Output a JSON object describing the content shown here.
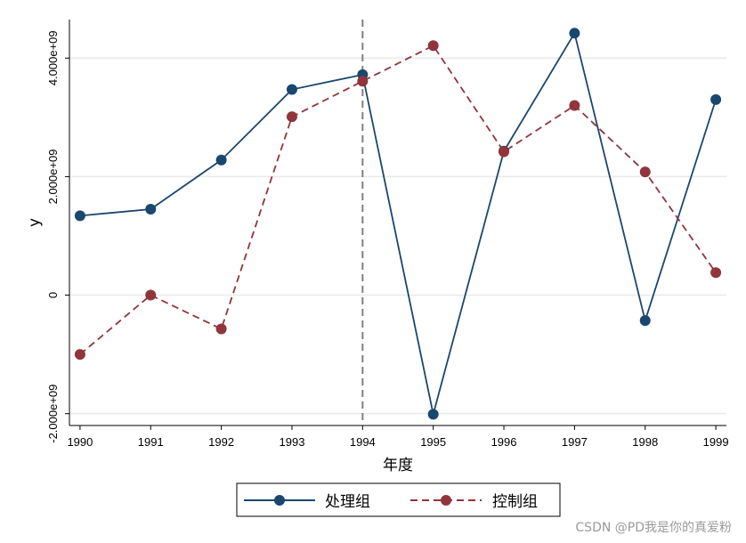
{
  "chart_data": {
    "type": "line",
    "title": "",
    "xlabel": "年度",
    "ylabel": "y",
    "x": [
      1990,
      1991,
      1992,
      1993,
      1994,
      1995,
      1996,
      1997,
      1998,
      1999
    ],
    "x_tick_labels": [
      "1990",
      "1991",
      "1992",
      "1993",
      "1994",
      "1995",
      "1996",
      "1997",
      "1998",
      "1999"
    ],
    "y_ticks": [
      -2000000000,
      0,
      2000000000,
      4000000000
    ],
    "y_tick_labels": [
      "-2.000e+09",
      "0",
      "2.000e+09",
      "4.000e+09"
    ],
    "ylim": [
      -2200000000,
      4650000000
    ],
    "xlim": [
      1989.85,
      1999.15
    ],
    "grid": "horizontal",
    "vline": {
      "x": 1994,
      "color": "#7f7f7f",
      "style": "dashed"
    },
    "legend_position": "bottom",
    "series": [
      {
        "name": "处理组",
        "color": "#1a476f",
        "line_style": "solid",
        "values": [
          1340000000,
          1450000000,
          2280000000,
          3470000000,
          3720000000,
          -2010000000,
          2430000000,
          4420000000,
          -430000000,
          3300000000
        ]
      },
      {
        "name": "控制组",
        "color": "#90353b",
        "line_style": "dashed",
        "values": [
          -1000000000,
          0,
          -570000000,
          3010000000,
          3610000000,
          4210000000,
          2420000000,
          3200000000,
          2080000000,
          380000000
        ]
      }
    ]
  },
  "watermark": "CSDN @PD我是你的真爱粉"
}
